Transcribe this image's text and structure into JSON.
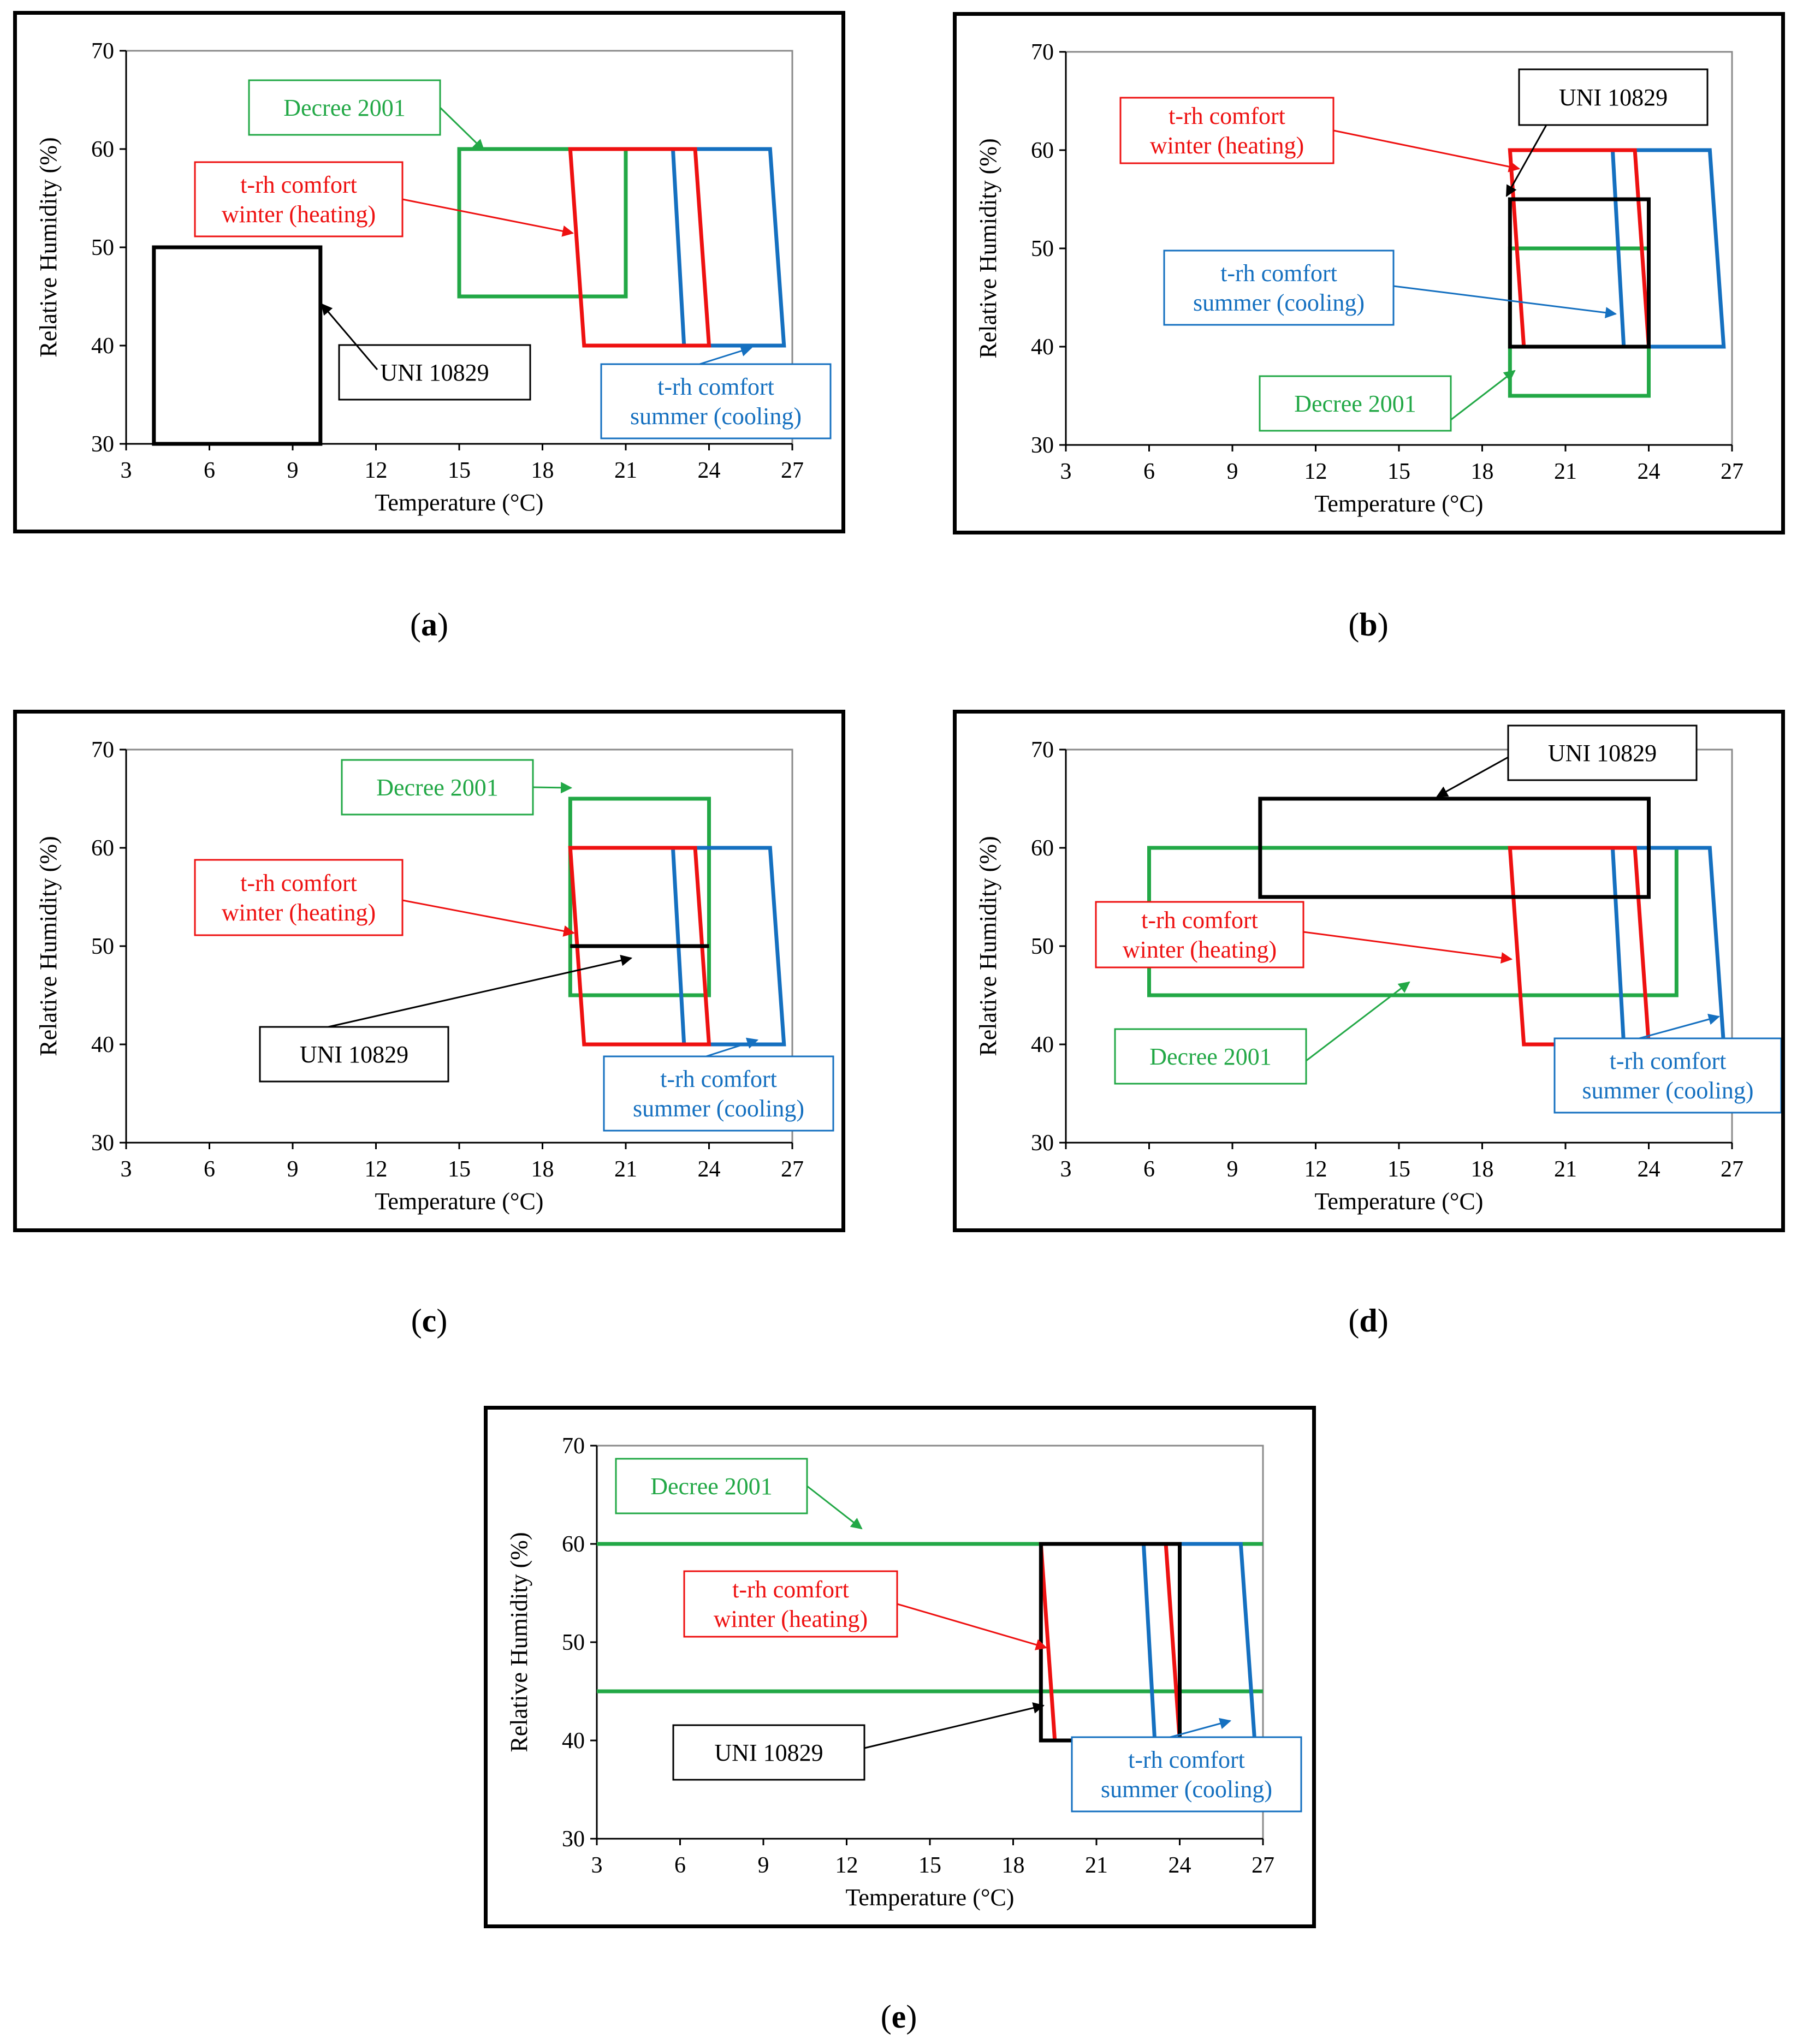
{
  "colors": {
    "uni": "#000000",
    "decree": "#22a846",
    "winter": "#ee1111",
    "summer": "#1570c0",
    "grid": "#8a8a8a"
  },
  "chart_data": [
    {
      "id": "a",
      "caption_letter": "a",
      "type": "area",
      "xlabel": "Temperature (°C)",
      "ylabel": "Relative Humidity (%)",
      "xlim": [
        3,
        27
      ],
      "ylim": [
        30,
        70
      ],
      "xticks": [
        "3",
        "6",
        "9",
        "12",
        "15",
        "18",
        "21",
        "24",
        "27"
      ],
      "yticks": [
        "30",
        "40",
        "50",
        "60",
        "70"
      ],
      "regions": {
        "uni": [
          [
            4,
            30
          ],
          [
            4,
            50
          ],
          [
            10,
            50
          ],
          [
            10,
            30
          ]
        ],
        "decree": [
          [
            15,
            45
          ],
          [
            15,
            60
          ],
          [
            21,
            60
          ],
          [
            21,
            45
          ]
        ],
        "winter": [
          [
            19,
            60
          ],
          [
            23.5,
            60
          ],
          [
            24,
            40
          ],
          [
            19.5,
            40
          ]
        ],
        "summer": [
          [
            22.7,
            60
          ],
          [
            26.2,
            60
          ],
          [
            26.7,
            40
          ],
          [
            23.1,
            40
          ]
        ]
      },
      "labels": {
        "uni": [
          "UNI 10829"
        ],
        "decree": [
          "Decree 2001"
        ],
        "winter": [
          "t-rh comfort",
          "winter (heating)"
        ],
        "summer": [
          "t-rh comfort",
          "summer (cooling)"
        ]
      }
    },
    {
      "id": "b",
      "caption_letter": "b",
      "type": "area",
      "xlabel": "Temperature (°C)",
      "ylabel": "Relative Humidity (%)",
      "xlim": [
        3,
        27
      ],
      "ylim": [
        30,
        70
      ],
      "xticks": [
        "3",
        "6",
        "9",
        "12",
        "15",
        "18",
        "21",
        "24",
        "27"
      ],
      "yticks": [
        "30",
        "40",
        "50",
        "60",
        "70"
      ],
      "regions": {
        "uni": [
          [
            19,
            40
          ],
          [
            19,
            55
          ],
          [
            24,
            55
          ],
          [
            24,
            40
          ]
        ],
        "decree": [
          [
            19,
            35
          ],
          [
            19,
            50
          ],
          [
            24,
            50
          ],
          [
            24,
            35
          ]
        ],
        "winter": [
          [
            19,
            60
          ],
          [
            23.5,
            60
          ],
          [
            24,
            40
          ],
          [
            19.5,
            40
          ]
        ],
        "summer": [
          [
            22.7,
            60
          ],
          [
            26.2,
            60
          ],
          [
            26.7,
            40
          ],
          [
            23.1,
            40
          ]
        ]
      },
      "labels": {
        "uni": [
          "UNI 10829"
        ],
        "decree": [
          "Decree 2001"
        ],
        "winter": [
          "t-rh comfort",
          "winter (heating)"
        ],
        "summer": [
          "t-rh comfort",
          "summer (cooling)"
        ]
      }
    },
    {
      "id": "c",
      "caption_letter": "c",
      "type": "area",
      "xlabel": "Temperature (°C)",
      "ylabel": "Relative Humidity (%)",
      "xlim": [
        3,
        27
      ],
      "ylim": [
        30,
        70
      ],
      "xticks": [
        "3",
        "6",
        "9",
        "12",
        "15",
        "18",
        "21",
        "24",
        "27"
      ],
      "yticks": [
        "30",
        "40",
        "50",
        "60",
        "70"
      ],
      "regions": {
        "uni": [
          [
            19,
            50
          ],
          [
            24,
            50
          ]
        ],
        "decree": [
          [
            19,
            45
          ],
          [
            19,
            65
          ],
          [
            24,
            65
          ],
          [
            24,
            45
          ]
        ],
        "winter": [
          [
            19,
            60
          ],
          [
            23.5,
            60
          ],
          [
            24,
            40
          ],
          [
            19.5,
            40
          ]
        ],
        "summer": [
          [
            22.7,
            60
          ],
          [
            26.2,
            60
          ],
          [
            26.7,
            40
          ],
          [
            23.1,
            40
          ]
        ]
      },
      "labels": {
        "uni": [
          "UNI 10829"
        ],
        "decree": [
          "Decree 2001"
        ],
        "winter": [
          "t-rh comfort",
          "winter (heating)"
        ],
        "summer": [
          "t-rh comfort",
          "summer (cooling)"
        ]
      }
    },
    {
      "id": "d",
      "caption_letter": "d",
      "type": "area",
      "xlabel": "Temperature (°C)",
      "ylabel": "Relative Humidity (%)",
      "xlim": [
        3,
        27
      ],
      "ylim": [
        30,
        70
      ],
      "xticks": [
        "3",
        "6",
        "9",
        "12",
        "15",
        "18",
        "21",
        "24",
        "27"
      ],
      "yticks": [
        "30",
        "40",
        "50",
        "60",
        "70"
      ],
      "regions": {
        "uni": [
          [
            10,
            55
          ],
          [
            10,
            65
          ],
          [
            24,
            65
          ],
          [
            24,
            55
          ]
        ],
        "decree": [
          [
            6,
            45
          ],
          [
            6,
            60
          ],
          [
            25,
            60
          ],
          [
            25,
            45
          ]
        ],
        "winter": [
          [
            19,
            60
          ],
          [
            23.5,
            60
          ],
          [
            24,
            40
          ],
          [
            19.5,
            40
          ]
        ],
        "summer": [
          [
            22.7,
            60
          ],
          [
            26.2,
            60
          ],
          [
            26.7,
            40
          ],
          [
            23.1,
            40
          ]
        ]
      },
      "labels": {
        "uni": [
          "UNI 10829"
        ],
        "decree": [
          "Decree 2001"
        ],
        "winter": [
          "t-rh comfort",
          "winter (heating)"
        ],
        "summer": [
          "t-rh comfort",
          "summer (cooling)"
        ]
      }
    },
    {
      "id": "e",
      "caption_letter": "e",
      "type": "area",
      "xlabel": "Temperature (°C)",
      "ylabel": "Relative Humidity (%)",
      "xlim": [
        3,
        27
      ],
      "ylim": [
        30,
        70
      ],
      "xticks": [
        "3",
        "6",
        "9",
        "12",
        "15",
        "18",
        "21",
        "24",
        "27"
      ],
      "yticks": [
        "30",
        "40",
        "50",
        "60",
        "70"
      ],
      "regions": {
        "uni": [
          [
            19,
            40
          ],
          [
            19,
            60
          ],
          [
            24,
            60
          ],
          [
            24,
            40
          ]
        ],
        "decree_lines": [
          60,
          45
        ],
        "winter": [
          [
            19,
            60
          ],
          [
            23.5,
            60
          ],
          [
            24,
            40
          ],
          [
            19.5,
            40
          ]
        ],
        "summer": [
          [
            22.7,
            60
          ],
          [
            26.2,
            60
          ],
          [
            26.7,
            40
          ],
          [
            23.1,
            40
          ]
        ]
      },
      "labels": {
        "uni": [
          "UNI 10829"
        ],
        "decree": [
          "Decree 2001"
        ],
        "winter": [
          "t-rh comfort",
          "winter (heating)"
        ],
        "summer": [
          "t-rh comfort",
          "summer (cooling)"
        ]
      }
    }
  ]
}
